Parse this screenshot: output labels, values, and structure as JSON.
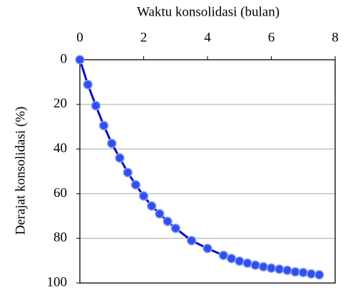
{
  "chart_data": {
    "type": "line",
    "x_label": "Waktu konsolidasi (bulan)",
    "y_label": "Derajat konsolidasi  (%)",
    "x": [
      0,
      0.25,
      0.5,
      0.75,
      1,
      1.25,
      1.5,
      1.75,
      2,
      2.25,
      2.5,
      2.75,
      3,
      3.5,
      4,
      4.5,
      4.75,
      5,
      5.25,
      5.5,
      5.75,
      6,
      6.25,
      6.5,
      6.75,
      7,
      7.25,
      7.5
    ],
    "series": [
      {
        "name": "Derajat konsolidasi",
        "color": "#0a0ad0",
        "marker_color": "#2f4ff0",
        "values": [
          0,
          11.1,
          20.6,
          29.5,
          37.5,
          44,
          50.5,
          56,
          61,
          65.5,
          69,
          72.4,
          75.5,
          81,
          84.5,
          87.6,
          89,
          90.2,
          91.1,
          92,
          92.7,
          93.3,
          93.8,
          94.3,
          95,
          95.3,
          95.9,
          96.3
        ]
      }
    ],
    "xlim": [
      0,
      8
    ],
    "xticks": [
      0,
      2,
      4,
      6,
      8
    ],
    "ylim": [
      0,
      100
    ],
    "yticks": [
      0,
      20,
      40,
      60,
      80,
      100
    ],
    "y_inverted": true,
    "x_axis_position": "top",
    "grid": true
  }
}
